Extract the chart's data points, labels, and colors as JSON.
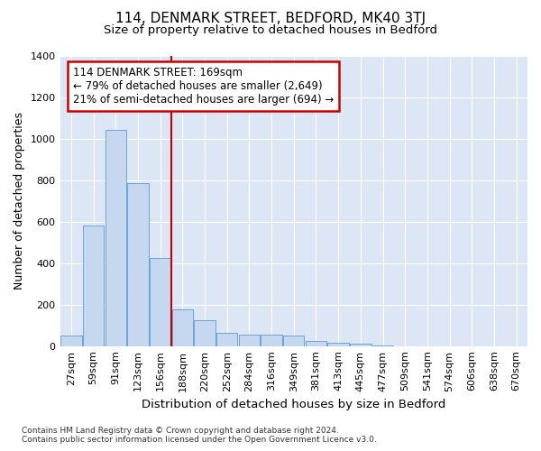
{
  "title": "114, DENMARK STREET, BEDFORD, MK40 3TJ",
  "subtitle": "Size of property relative to detached houses in Bedford",
  "xlabel": "Distribution of detached houses by size in Bedford",
  "ylabel": "Number of detached properties",
  "bar_color": "#c5d8f0",
  "bar_edge_color": "#5b9bd5",
  "fig_bg_color": "#ffffff",
  "plot_bg_color": "#dce6f5",
  "grid_color": "#ffffff",
  "vline_color": "#cc0000",
  "vline_x": 4.5,
  "annotation_text": "114 DENMARK STREET: 169sqm\n← 79% of detached houses are smaller (2,649)\n21% of semi-detached houses are larger (694) →",
  "annotation_box_color": "#ffffff",
  "annotation_box_edge": "#cc0000",
  "categories": [
    "27sqm",
    "59sqm",
    "91sqm",
    "123sqm",
    "156sqm",
    "188sqm",
    "220sqm",
    "252sqm",
    "284sqm",
    "316sqm",
    "349sqm",
    "381sqm",
    "413sqm",
    "445sqm",
    "477sqm",
    "509sqm",
    "541sqm",
    "574sqm",
    "606sqm",
    "638sqm",
    "670sqm"
  ],
  "values": [
    50,
    580,
    1040,
    785,
    425,
    178,
    125,
    65,
    55,
    55,
    50,
    25,
    18,
    10,
    5,
    0,
    0,
    0,
    0,
    0,
    0
  ],
  "ylim": [
    0,
    1400
  ],
  "yticks": [
    0,
    200,
    400,
    600,
    800,
    1000,
    1200,
    1400
  ],
  "footer_text": "Contains HM Land Registry data © Crown copyright and database right 2024.\nContains public sector information licensed under the Open Government Licence v3.0.",
  "title_fontsize": 11,
  "subtitle_fontsize": 9.5,
  "ylabel_fontsize": 9,
  "xlabel_fontsize": 9.5,
  "tick_fontsize": 8,
  "annot_fontsize": 8.5,
  "footer_fontsize": 6.5
}
